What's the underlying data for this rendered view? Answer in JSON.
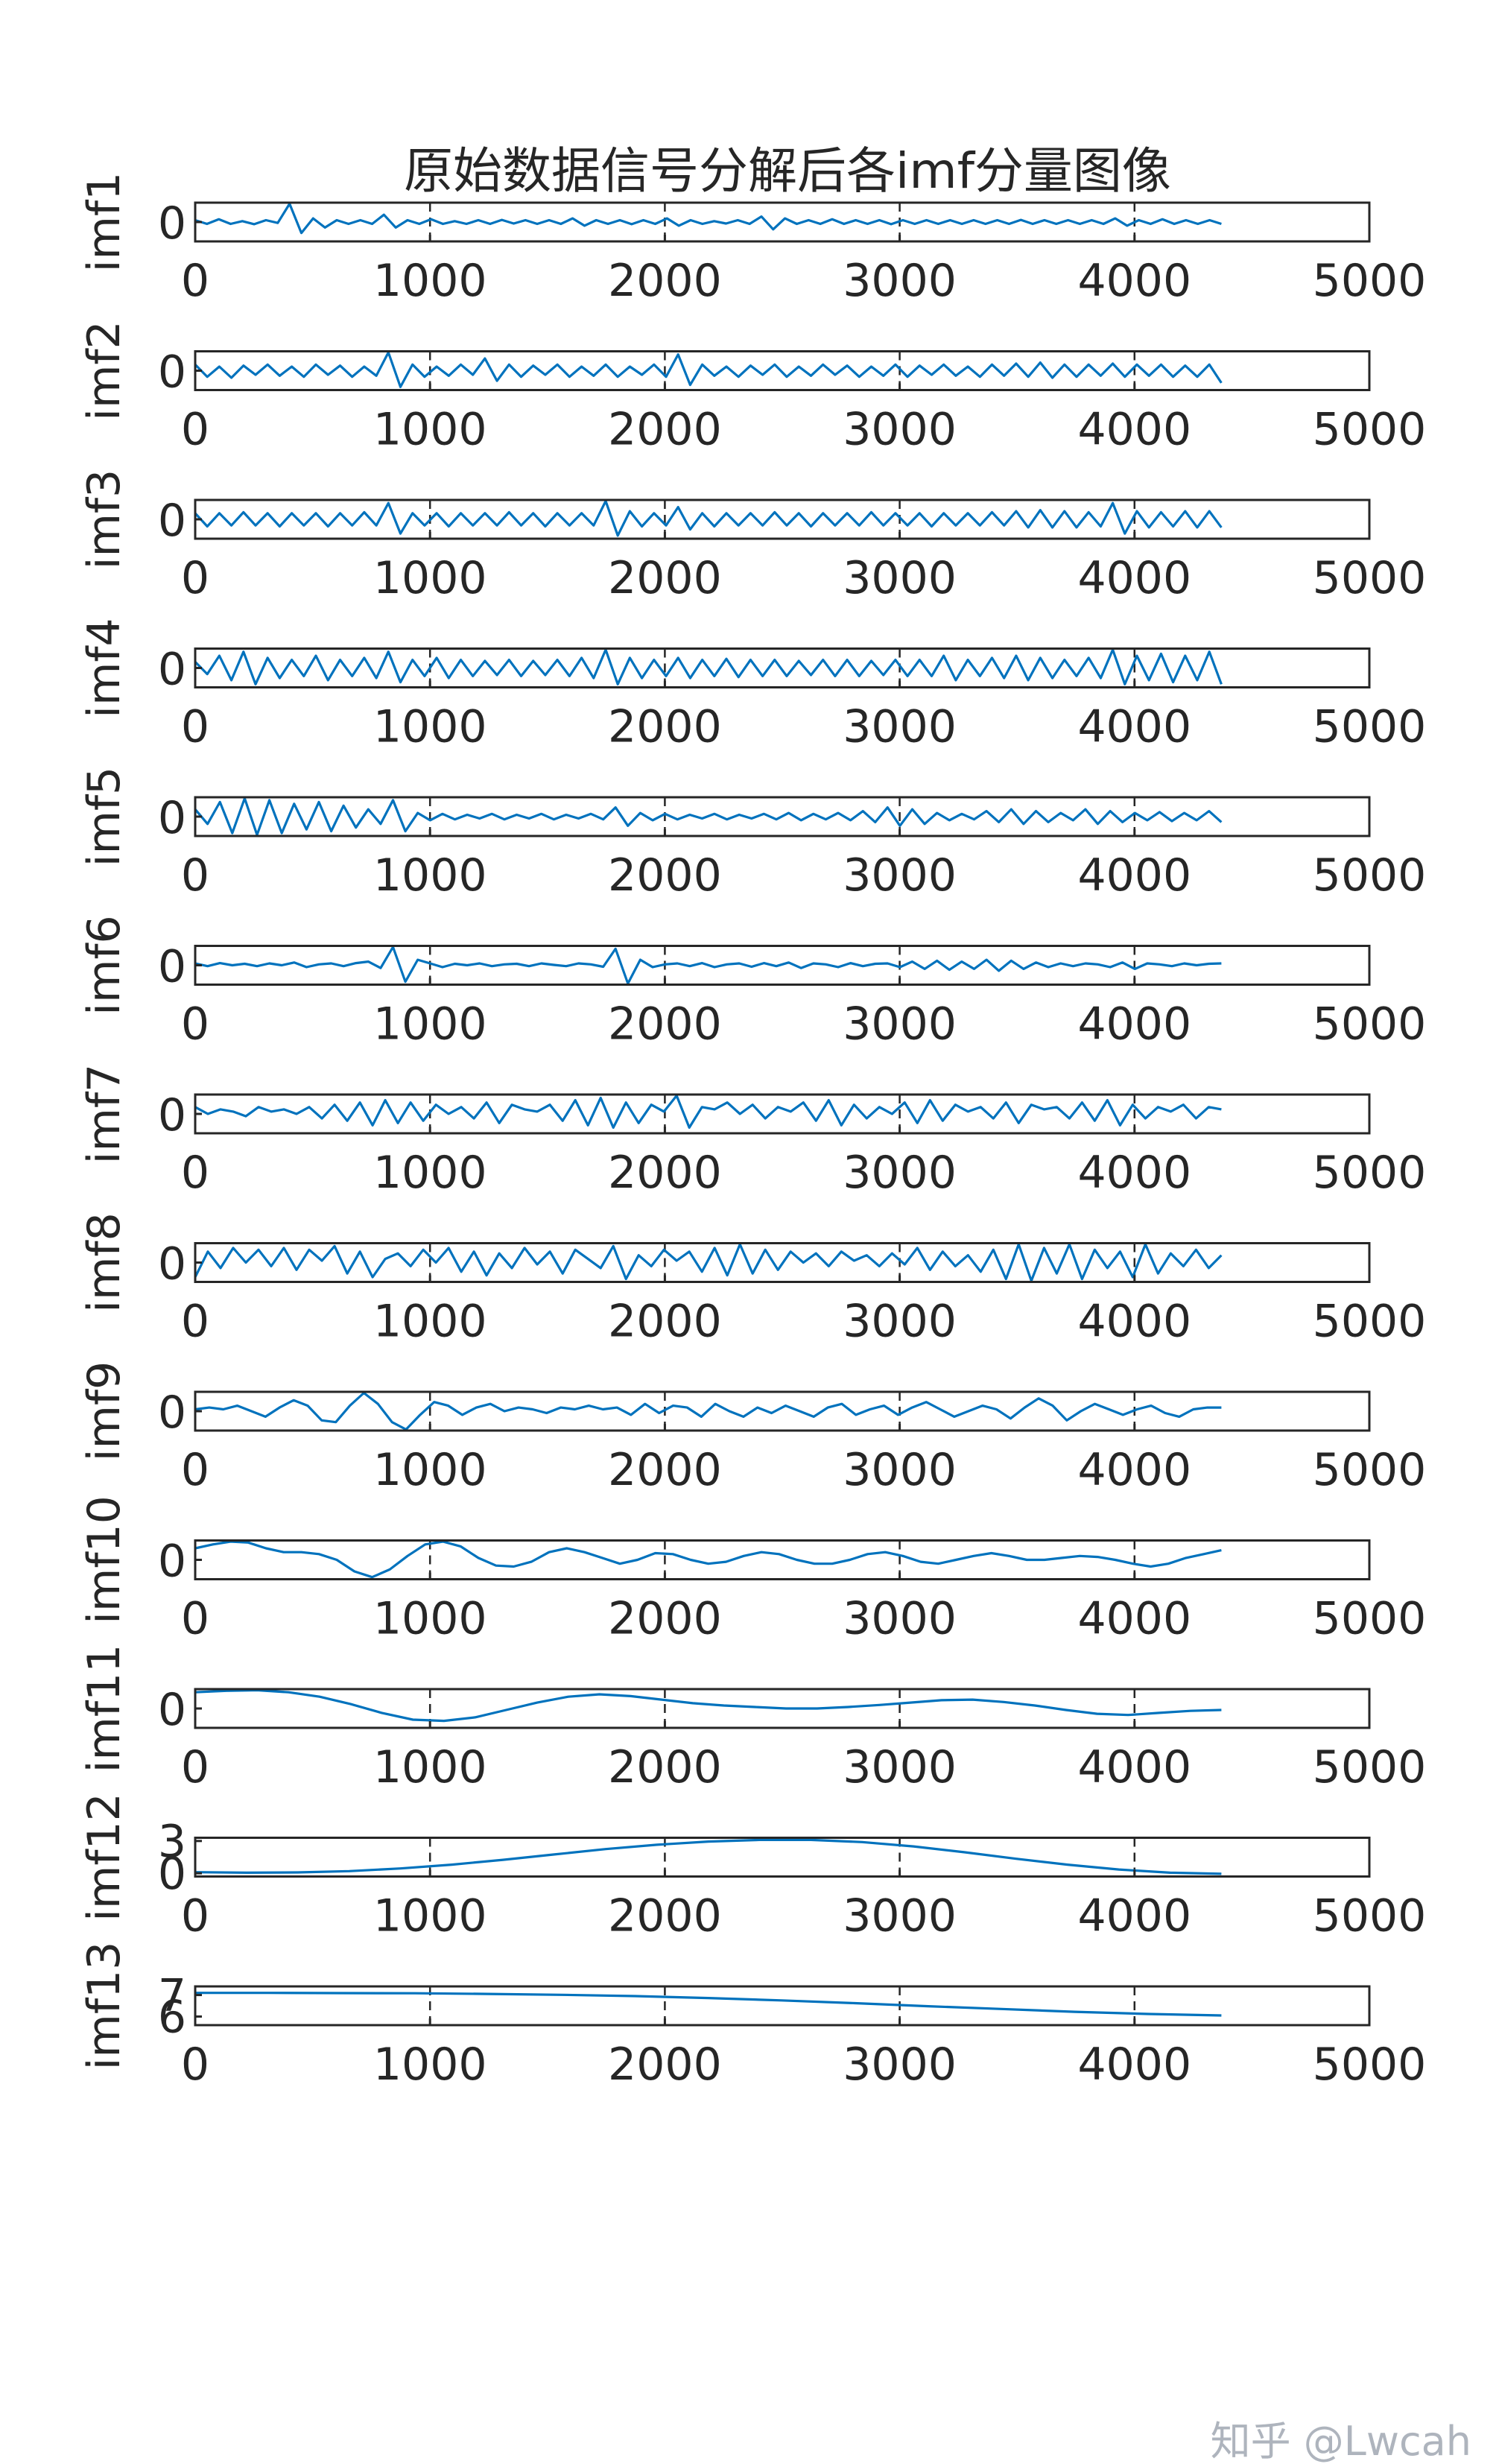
{
  "chart_data": {
    "type": "line",
    "title": "原始数据信号分解后各imf分量图像",
    "color": "#0072BD",
    "xlim": [
      0,
      5000
    ],
    "xticks": [
      "0",
      "1000",
      "2000",
      "3000",
      "4000",
      "5000"
    ],
    "grid": "x-dashed",
    "panels": [
      {
        "name": "imf1",
        "yticks": [
          "0"
        ],
        "x_end": 4370,
        "values": [
          0.1,
          -0.1,
          0.15,
          -0.1,
          0.05,
          -0.12,
          0.1,
          -0.05,
          1.0,
          -0.6,
          0.2,
          -0.3,
          0.1,
          -0.1,
          0.1,
          -0.1,
          0.4,
          -0.3,
          0.1,
          -0.1,
          0.15,
          -0.1,
          0.05,
          -0.1,
          0.1,
          -0.1,
          0.12,
          -0.08,
          0.1,
          -0.1,
          0.1,
          -0.1,
          0.2,
          -0.2,
          0.1,
          -0.1,
          0.1,
          -0.12,
          0.1,
          -0.1,
          0.2,
          -0.2,
          0.1,
          -0.1,
          0.05,
          -0.08,
          0.1,
          -0.1,
          0.3,
          -0.4,
          0.2,
          -0.1,
          0.1,
          -0.1,
          0.15,
          -0.1,
          0.1,
          -0.1,
          0.1,
          -0.12,
          0.1,
          -0.1,
          0.1,
          -0.1,
          0.1,
          -0.1,
          0.1,
          -0.1,
          0.1,
          -0.1,
          0.12,
          -0.1,
          0.1,
          -0.1,
          0.1,
          -0.1,
          0.1,
          -0.1,
          0.2,
          -0.2,
          0.1,
          -0.1,
          0.15,
          -0.1,
          0.1,
          -0.1,
          0.1,
          -0.1
        ]
      },
      {
        "name": "imf2",
        "yticks": [
          "0"
        ],
        "x_end": 4370,
        "values": [
          0.3,
          -0.3,
          0.2,
          -0.35,
          0.25,
          -0.2,
          0.3,
          -0.25,
          0.2,
          -0.3,
          0.3,
          -0.2,
          0.25,
          -0.3,
          0.2,
          -0.25,
          0.9,
          -0.8,
          0.3,
          -0.3,
          0.2,
          -0.25,
          0.3,
          -0.2,
          0.6,
          -0.5,
          0.3,
          -0.3,
          0.25,
          -0.2,
          0.3,
          -0.3,
          0.2,
          -0.25,
          0.3,
          -0.3,
          0.2,
          -0.2,
          0.3,
          -0.3,
          0.8,
          -0.7,
          0.3,
          -0.25,
          0.2,
          -0.3,
          0.25,
          -0.2,
          0.3,
          -0.3,
          0.2,
          -0.25,
          0.3,
          -0.2,
          0.25,
          -0.3,
          0.2,
          -0.25,
          0.3,
          -0.3,
          0.25,
          -0.2,
          0.3,
          -0.25,
          0.2,
          -0.3,
          0.3,
          -0.25,
          0.35,
          -0.3,
          0.4,
          -0.35,
          0.3,
          -0.3,
          0.3,
          -0.25,
          0.35,
          -0.3,
          0.3,
          -0.25,
          0.3,
          -0.3,
          0.25,
          -0.3,
          0.3,
          -0.6
        ]
      },
      {
        "name": "imf3",
        "yticks": [
          "0"
        ],
        "x_end": 4370,
        "values": [
          0.3,
          -0.35,
          0.3,
          -0.3,
          0.35,
          -0.3,
          0.3,
          -0.35,
          0.3,
          -0.3,
          0.3,
          -0.35,
          0.3,
          -0.3,
          0.35,
          -0.3,
          0.8,
          -0.7,
          0.3,
          -0.3,
          0.3,
          -0.35,
          0.3,
          -0.3,
          0.3,
          -0.3,
          0.35,
          -0.3,
          0.3,
          -0.35,
          0.3,
          -0.3,
          0.3,
          -0.3,
          0.9,
          -0.8,
          0.4,
          -0.35,
          0.3,
          -0.3,
          0.6,
          -0.5,
          0.3,
          -0.35,
          0.3,
          -0.3,
          0.3,
          -0.3,
          0.35,
          -0.3,
          0.3,
          -0.35,
          0.3,
          -0.3,
          0.3,
          -0.3,
          0.35,
          -0.3,
          0.3,
          -0.3,
          0.3,
          -0.35,
          0.3,
          -0.3,
          0.3,
          -0.3,
          0.35,
          -0.3,
          0.4,
          -0.4,
          0.45,
          -0.4,
          0.4,
          -0.4,
          0.35,
          -0.35,
          0.8,
          -0.7,
          0.4,
          -0.4,
          0.35,
          -0.35,
          0.4,
          -0.4,
          0.4,
          -0.4
        ]
      },
      {
        "name": "imf4",
        "yticks": [
          "0"
        ],
        "x_end": 4370,
        "values": [
          0.3,
          -0.3,
          0.6,
          -0.6,
          0.8,
          -0.8,
          0.5,
          -0.5,
          0.4,
          -0.4,
          0.6,
          -0.6,
          0.4,
          -0.4,
          0.5,
          -0.5,
          0.8,
          -0.7,
          0.4,
          -0.4,
          0.5,
          -0.5,
          0.4,
          -0.4,
          0.35,
          -0.35,
          0.4,
          -0.4,
          0.35,
          -0.35,
          0.4,
          -0.4,
          0.5,
          -0.5,
          0.9,
          -0.8,
          0.5,
          -0.5,
          0.4,
          -0.4,
          0.5,
          -0.5,
          0.4,
          -0.4,
          0.45,
          -0.45,
          0.4,
          -0.4,
          0.4,
          -0.4,
          0.35,
          -0.35,
          0.4,
          -0.4,
          0.4,
          -0.4,
          0.35,
          -0.35,
          0.4,
          -0.4,
          0.4,
          -0.4,
          0.6,
          -0.6,
          0.4,
          -0.4,
          0.5,
          -0.5,
          0.6,
          -0.6,
          0.5,
          -0.5,
          0.4,
          -0.4,
          0.5,
          -0.5,
          0.9,
          -0.8,
          0.6,
          -0.6,
          0.7,
          -0.7,
          0.6,
          -0.6,
          0.8,
          -0.8
        ]
      },
      {
        "name": "imf5",
        "yticks": [
          "0"
        ],
        "x_end": 4370,
        "values": [
          0.4,
          -0.4,
          0.8,
          -0.9,
          1.0,
          -1.0,
          0.9,
          -0.9,
          0.7,
          -0.7,
          0.8,
          -0.8,
          0.6,
          -0.6,
          0.4,
          -0.4,
          0.9,
          -0.8,
          0.2,
          -0.2,
          0.15,
          -0.15,
          0.1,
          -0.1,
          0.15,
          -0.15,
          0.1,
          -0.1,
          0.15,
          -0.15,
          0.1,
          -0.1,
          0.15,
          -0.15,
          0.5,
          -0.5,
          0.2,
          -0.2,
          0.15,
          -0.15,
          0.1,
          -0.1,
          0.15,
          -0.15,
          0.1,
          -0.1,
          0.15,
          -0.15,
          0.2,
          -0.2,
          0.15,
          -0.15,
          0.2,
          -0.2,
          0.3,
          -0.3,
          0.5,
          -0.5,
          0.4,
          -0.4,
          0.2,
          -0.2,
          0.15,
          -0.15,
          0.3,
          -0.3,
          0.4,
          -0.4,
          0.3,
          -0.3,
          0.2,
          -0.2,
          0.4,
          -0.4,
          0.3,
          -0.3,
          0.2,
          -0.2,
          0.25,
          -0.25,
          0.2,
          -0.2,
          0.3,
          -0.3
        ]
      },
      {
        "name": "imf6",
        "yticks": [
          "0"
        ],
        "x_end": 4370,
        "values": [
          0.1,
          -0.05,
          0.12,
          0.0,
          0.08,
          -0.05,
          0.1,
          0.0,
          0.15,
          -0.1,
          0.05,
          0.1,
          -0.05,
          0.12,
          0.2,
          -0.15,
          1.0,
          -0.9,
          0.3,
          0.1,
          -0.1,
          0.08,
          0.0,
          0.1,
          -0.05,
          0.05,
          0.08,
          -0.05,
          0.1,
          0.02,
          -0.05,
          0.1,
          0.05,
          -0.08,
          0.9,
          -1.0,
          0.3,
          -0.1,
          0.05,
          0.1,
          -0.05,
          0.12,
          -0.1,
          0.05,
          0.1,
          -0.08,
          0.12,
          -0.05,
          0.15,
          -0.15,
          0.1,
          0.05,
          -0.1,
          0.12,
          -0.05,
          0.08,
          0.1,
          -0.1,
          0.2,
          -0.2,
          0.25,
          -0.25,
          0.2,
          -0.2,
          0.3,
          -0.3,
          0.25,
          -0.2,
          0.15,
          -0.1,
          0.1,
          -0.05,
          0.1,
          0.05,
          -0.1,
          0.15,
          -0.2,
          0.1,
          0.05,
          -0.05,
          0.1,
          0.0,
          0.08,
          0.1
        ]
      },
      {
        "name": "imf7",
        "yticks": [
          "0"
        ],
        "x_end": 4370,
        "values": [
          0.3,
          0.0,
          0.2,
          0.1,
          -0.1,
          0.3,
          0.1,
          0.2,
          0.0,
          0.3,
          -0.2,
          0.4,
          -0.3,
          0.5,
          -0.5,
          0.6,
          -0.4,
          0.5,
          -0.3,
          0.4,
          0.0,
          0.3,
          -0.2,
          0.5,
          -0.4,
          0.4,
          0.2,
          0.1,
          0.4,
          -0.3,
          0.6,
          -0.5,
          0.7,
          -0.6,
          0.5,
          -0.4,
          0.4,
          0.1,
          0.8,
          -0.6,
          0.3,
          0.2,
          0.5,
          0.0,
          0.4,
          -0.2,
          0.3,
          0.1,
          0.5,
          -0.3,
          0.6,
          -0.5,
          0.4,
          -0.2,
          0.3,
          0.0,
          0.5,
          -0.4,
          0.6,
          -0.3,
          0.4,
          0.1,
          0.3,
          -0.2,
          0.5,
          -0.4,
          0.4,
          0.2,
          0.3,
          -0.2,
          0.5,
          -0.3,
          0.6,
          -0.5,
          0.4,
          -0.2,
          0.3,
          0.1,
          0.4,
          -0.2,
          0.3,
          0.2
        ]
      },
      {
        "name": "imf8",
        "yticks": [
          "0"
        ],
        "x_end": 4370,
        "values": [
          -0.8,
          0.6,
          -0.3,
          0.8,
          0.0,
          0.7,
          -0.2,
          0.8,
          -0.4,
          0.7,
          0.1,
          0.9,
          -0.6,
          0.6,
          -0.8,
          0.2,
          0.5,
          -0.2,
          0.7,
          0.0,
          0.8,
          -0.5,
          0.6,
          -0.7,
          0.5,
          -0.3,
          0.8,
          -0.1,
          0.6,
          -0.6,
          0.7,
          0.2,
          -0.3,
          0.9,
          -0.9,
          0.4,
          -0.2,
          0.7,
          0.1,
          0.6,
          -0.5,
          0.8,
          -0.7,
          1.0,
          -0.6,
          0.7,
          -0.4,
          0.6,
          0.0,
          0.5,
          -0.2,
          0.6,
          0.1,
          0.4,
          -0.2,
          0.5,
          -0.1,
          0.8,
          -0.4,
          0.6,
          -0.2,
          0.4,
          -0.5,
          0.7,
          -0.9,
          1.0,
          -1.0,
          0.8,
          -0.6,
          1.0,
          -0.9,
          0.7,
          -0.3,
          0.6,
          -0.8,
          1.0,
          -0.6,
          0.5,
          -0.2,
          0.7,
          -0.3,
          0.4
        ]
      },
      {
        "name": "imf9",
        "yticks": [
          "0"
        ],
        "x_end": 4370,
        "values": [
          0.1,
          0.2,
          0.1,
          0.3,
          0.0,
          -0.3,
          0.2,
          0.6,
          0.3,
          -0.5,
          -0.6,
          0.3,
          1.0,
          0.4,
          -0.6,
          -1.0,
          -0.2,
          0.5,
          0.3,
          -0.2,
          0.2,
          0.4,
          0.0,
          0.2,
          0.1,
          -0.1,
          0.2,
          0.1,
          0.3,
          0.1,
          0.2,
          -0.2,
          0.4,
          -0.1,
          0.3,
          0.2,
          -0.3,
          0.4,
          0.0,
          -0.3,
          0.2,
          -0.1,
          0.3,
          0.0,
          -0.3,
          0.2,
          0.4,
          -0.2,
          0.1,
          0.3,
          -0.2,
          0.2,
          0.5,
          0.1,
          -0.3,
          0.0,
          0.3,
          0.1,
          -0.4,
          0.2,
          0.7,
          0.3,
          -0.5,
          0.0,
          0.4,
          0.1,
          -0.2,
          0.1,
          0.3,
          -0.1,
          -0.3,
          0.1,
          0.2,
          0.2
        ]
      },
      {
        "name": "imf10",
        "yticks": [
          "0"
        ],
        "x_end": 4370,
        "values": [
          0.6,
          0.8,
          0.95,
          0.9,
          0.6,
          0.4,
          0.4,
          0.3,
          0.0,
          -0.6,
          -0.9,
          -0.5,
          0.2,
          0.8,
          0.95,
          0.7,
          0.1,
          -0.3,
          -0.35,
          -0.1,
          0.4,
          0.6,
          0.4,
          0.1,
          -0.2,
          0.0,
          0.35,
          0.3,
          0.0,
          -0.2,
          -0.1,
          0.2,
          0.4,
          0.3,
          0.0,
          -0.2,
          -0.2,
          0.0,
          0.3,
          0.4,
          0.2,
          -0.1,
          -0.2,
          0.0,
          0.2,
          0.35,
          0.2,
          0.0,
          0.0,
          0.1,
          0.2,
          0.15,
          0.0,
          -0.2,
          -0.35,
          -0.2,
          0.1,
          0.3,
          0.5
        ]
      },
      {
        "name": "imf11",
        "yticks": [
          "0"
        ],
        "x_end": 4370,
        "values": [
          0.55,
          0.6,
          0.62,
          0.55,
          0.4,
          0.15,
          -0.15,
          -0.38,
          -0.42,
          -0.3,
          -0.05,
          0.2,
          0.4,
          0.48,
          0.42,
          0.3,
          0.18,
          0.1,
          0.05,
          0.0,
          0.0,
          0.05,
          0.12,
          0.2,
          0.28,
          0.3,
          0.22,
          0.1,
          -0.05,
          -0.18,
          -0.22,
          -0.15,
          -0.08,
          -0.05
        ]
      },
      {
        "name": "imf12",
        "yticks": [
          "3",
          "0"
        ],
        "ylim": [
          -0.3,
          3.3
        ],
        "x_end": 4370,
        "values": [
          0.1,
          0.05,
          0.08,
          0.2,
          0.45,
          0.8,
          1.25,
          1.75,
          2.25,
          2.65,
          2.95,
          3.1,
          3.1,
          2.9,
          2.5,
          1.95,
          1.35,
          0.8,
          0.35,
          0.05,
          -0.05
        ]
      },
      {
        "name": "imf13",
        "yticks": [
          "7",
          "6"
        ],
        "ylim": [
          5.6,
          7.4
        ],
        "x_end": 4370,
        "values": [
          7.1,
          7.1,
          7.09,
          7.08,
          7.05,
          7.01,
          6.95,
          6.86,
          6.75,
          6.62,
          6.48,
          6.35,
          6.22,
          6.12,
          6.05
        ]
      }
    ]
  },
  "watermark": "知乎 @Lwcah"
}
